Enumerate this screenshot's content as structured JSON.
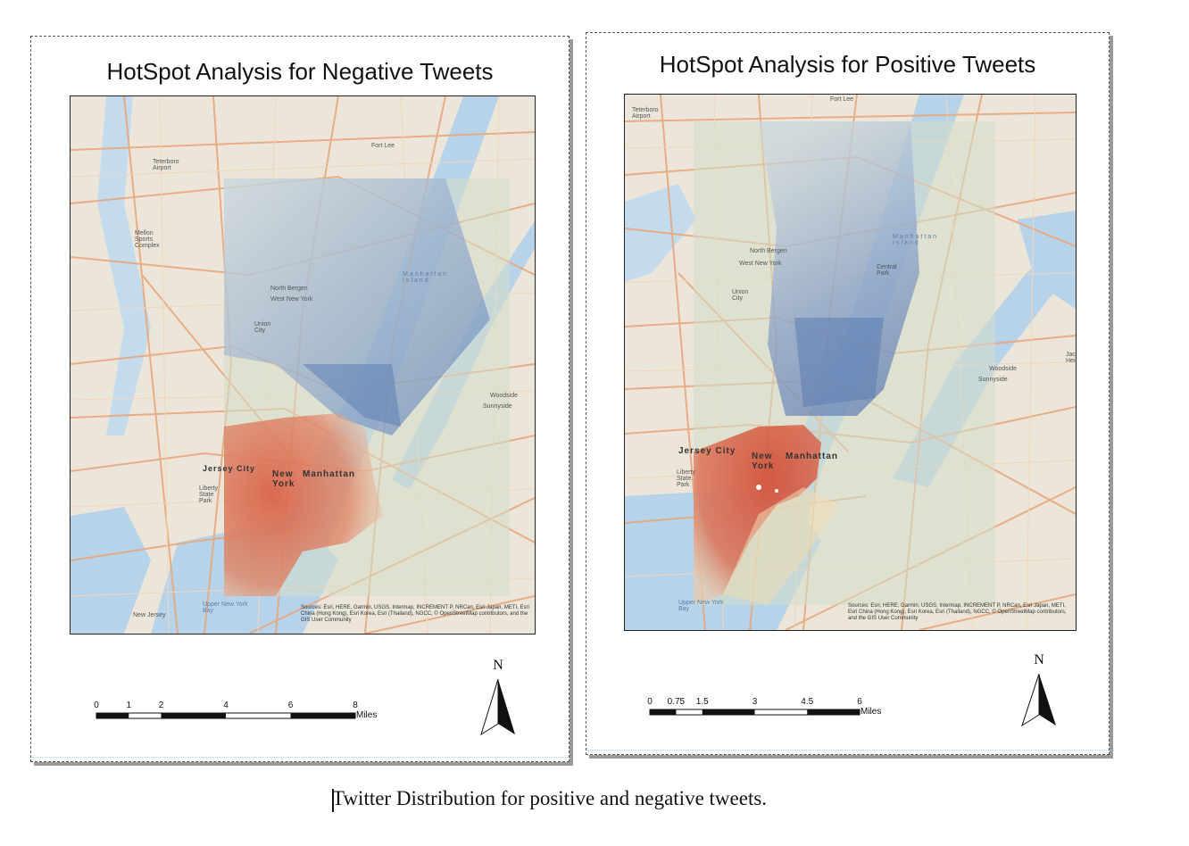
{
  "panels": [
    {
      "id": "negative",
      "title": "HotSpot Analysis for Negative Tweets",
      "places": {
        "fort_lee": "Fort Lee",
        "north_bergen": "North Bergen",
        "west_new_york": "West New York",
        "union_city": "Union City",
        "manhattan_island": "Manhattan Island",
        "woodside": "Woodside",
        "sunnyside": "Sunnyside",
        "jersey_city": "Jersey City",
        "new_york": "New York",
        "manhattan": "Manhattan",
        "upper_new_york_bay": "Upper New York Bay",
        "teterboro": "Teterboro Airport",
        "mellon": "Mellon Sports Complex",
        "liberty_state_park": "Liberty State Park",
        "newark_bay": "New Jersey"
      },
      "attribution": "Sources: Esri, HERE, Garmin, USGS, Intermap, INCREMENT P, NRCan, Esri Japan, METI, Esri China (Hong Kong), Esri Korea, Esri (Thailand), NGCC, © OpenStreetMap contributors, and the GIS User Community",
      "scale": {
        "ticks": [
          "0",
          "1",
          "2",
          "4",
          "6",
          "8"
        ],
        "tick_values": [
          0,
          1,
          2,
          4,
          6,
          8
        ],
        "unit": "Miles"
      },
      "north_label": "N"
    },
    {
      "id": "positive",
      "title": "HotSpot Analysis for Positive Tweets",
      "places": {
        "fort_lee": "Fort Lee",
        "teterboro": "Teterboro Airport",
        "north_bergen": "North Bergen",
        "west_new_york": "West New York",
        "union_city": "Union City",
        "manhattan_island": "Manhattan Island",
        "central_park": "Central Park",
        "woodside": "Woodside",
        "sunnyside": "Sunnyside",
        "jackson_heights": "Jackson Heights",
        "jersey_city": "Jersey City",
        "new_york": "New York",
        "manhattan": "Manhattan",
        "upper_new_york_bay": "Upper New York Bay",
        "liberty_state_park": "Liberty State Park"
      },
      "attribution": "Sources: Esri, HERE, Garmin, USGS, Intermap, INCREMENT P, NRCan, Esri Japan, METI, Esri China (Hong Kong), Esri Korea, Esri (Thailand), NGCC, © OpenStreetMap contributors, and the GIS User Community",
      "scale": {
        "ticks": [
          "0",
          "0.75",
          "1.5",
          "3",
          "4.5",
          "6"
        ],
        "tick_values": [
          0,
          0.75,
          1.5,
          3,
          4.5,
          6
        ],
        "unit": "Miles"
      },
      "north_label": "N"
    }
  ],
  "caption": "Twitter Distribution for positive and negative tweets.",
  "colors": {
    "hot": "#d9553a",
    "cold": "#6f8fc4",
    "neutral": "#d6dcc8",
    "water": "#b7d3ea",
    "land": "#ebe6d9",
    "road": "#e7a77c"
  }
}
